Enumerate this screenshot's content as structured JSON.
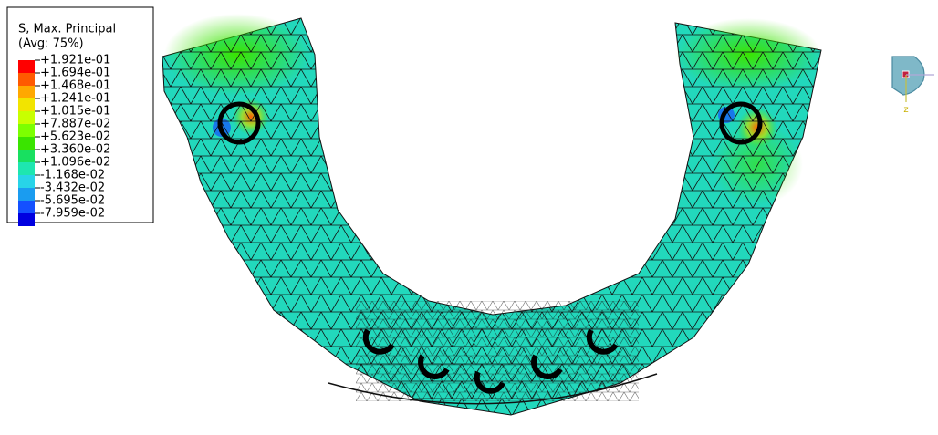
{
  "legend": {
    "title": "S, Max. Principal",
    "subtitle": "(Avg: 75%)",
    "labels": [
      "+1.921e-01",
      "+1.694e-01",
      "+1.468e-01",
      "+1.241e-01",
      "+1.015e-01",
      "+7.887e-02",
      "+5.623e-02",
      "+3.360e-02",
      "+1.096e-02",
      "-1.168e-02",
      "-3.432e-02",
      "-5.695e-02",
      "-7.959e-02"
    ],
    "colors": [
      "#ff0000",
      "#ff5a00",
      "#ffa800",
      "#f2e400",
      "#c8ff00",
      "#7cff00",
      "#3ae400",
      "#18e060",
      "#1ee6b0",
      "#28d4e8",
      "#1a9cf0",
      "#1450ff",
      "#0000e0"
    ]
  },
  "triad": {
    "axis": "z"
  }
}
